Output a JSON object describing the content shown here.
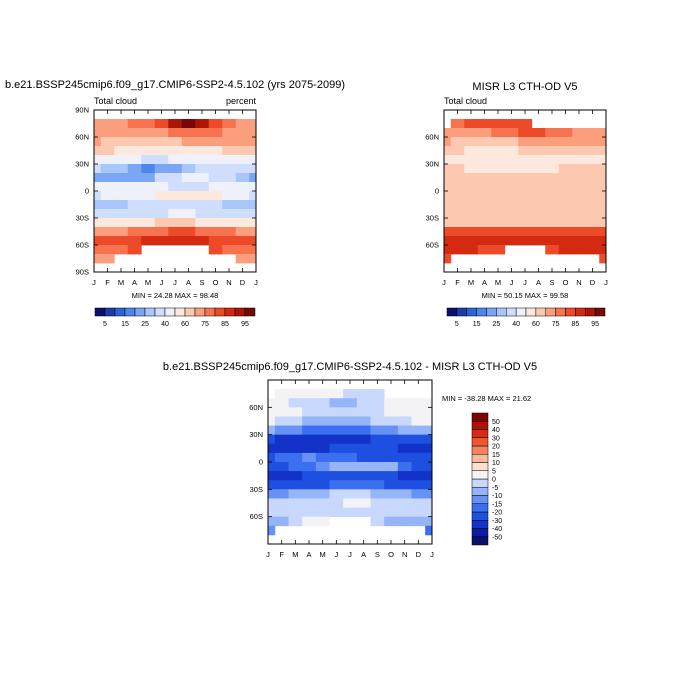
{
  "chart_data": [
    {
      "type": "heatmap",
      "title": "b.e21.BSSP245cmip6.f09_g17.CMIP6-SSP2-4.5.102 (yrs 2075-2099)",
      "left_label": "Total cloud",
      "right_label": "percent",
      "x_ticks": [
        "J",
        "F",
        "M",
        "A",
        "M",
        "J",
        "J",
        "A",
        "S",
        "O",
        "N",
        "D",
        "J"
      ],
      "y_ticks": [
        "90N",
        "60N",
        "30N",
        "0",
        "30S",
        "60S",
        "90S"
      ],
      "ylim": [
        -90,
        90
      ],
      "lat_rows": [
        75,
        65,
        55,
        45,
        35,
        25,
        15,
        5,
        -5,
        -15,
        -25,
        -35,
        -45,
        -55,
        -65,
        -75
      ],
      "values": [
        [
          72,
          72,
          74,
          76,
          78,
          82,
          90,
          96,
          92,
          82,
          76,
          74,
          72
        ],
        [
          72,
          70,
          70,
          70,
          72,
          74,
          76,
          78,
          78,
          76,
          74,
          73,
          72
        ],
        [
          70,
          68,
          66,
          64,
          64,
          66,
          68,
          70,
          70,
          70,
          70,
          70,
          70
        ],
        [
          62,
          60,
          58,
          56,
          54,
          54,
          56,
          58,
          58,
          58,
          60,
          62,
          62
        ],
        [
          48,
          46,
          44,
          40,
          38,
          38,
          40,
          42,
          44,
          46,
          48,
          48,
          48
        ],
        [
          30,
          28,
          26,
          22,
          18,
          20,
          22,
          26,
          30,
          32,
          32,
          30,
          30
        ],
        [
          24,
          22,
          20,
          20,
          22,
          30,
          36,
          40,
          40,
          36,
          30,
          26,
          24
        ],
        [
          42,
          44,
          46,
          48,
          44,
          40,
          38,
          36,
          36,
          40,
          42,
          42,
          42
        ],
        [
          38,
          40,
          42,
          44,
          48,
          52,
          54,
          56,
          56,
          52,
          46,
          40,
          38
        ],
        [
          26,
          26,
          28,
          30,
          32,
          34,
          36,
          38,
          36,
          32,
          28,
          26,
          26
        ],
        [
          30,
          30,
          32,
          34,
          36,
          38,
          40,
          40,
          38,
          36,
          34,
          32,
          30
        ],
        [
          52,
          52,
          54,
          56,
          58,
          60,
          60,
          60,
          58,
          56,
          54,
          52,
          52
        ],
        [
          74,
          74,
          74,
          75,
          76,
          78,
          80,
          80,
          78,
          76,
          75,
          74,
          74
        ],
        [
          84,
          84,
          84,
          84,
          85,
          86,
          86,
          86,
          85,
          84,
          84,
          84,
          84
        ],
        [
          78,
          78,
          78,
          80,
          null,
          null,
          null,
          null,
          null,
          80,
          78,
          78,
          78
        ],
        [
          70,
          72,
          null,
          null,
          null,
          null,
          null,
          null,
          null,
          null,
          null,
          72,
          70
        ]
      ],
      "min_label": "MIN =  24.28 MAX =  98.48",
      "colorbar_labels": [
        "5",
        "15",
        "25",
        "40",
        "60",
        "75",
        "85",
        "95"
      ]
    },
    {
      "type": "heatmap",
      "title": "MISR L3 CTH-OD V5",
      "left_label": "Total cloud",
      "x_ticks": [
        "J",
        "F",
        "M",
        "A",
        "M",
        "J",
        "J",
        "A",
        "S",
        "O",
        "N",
        "D",
        "J"
      ],
      "y_ticks": [
        "60N",
        "30N",
        "0",
        "30S",
        "60S"
      ],
      "ylim": [
        -90,
        90
      ],
      "lat_rows": [
        75,
        65,
        55,
        45,
        35,
        25,
        15,
        5,
        -5,
        -15,
        -25,
        -35,
        -45,
        -55,
        -65,
        -75
      ],
      "values": [
        [
          null,
          78,
          80,
          80,
          80,
          80,
          80,
          null,
          null,
          null,
          null,
          null,
          null
        ],
        [
          72,
          72,
          72,
          74,
          76,
          78,
          80,
          80,
          78,
          76,
          74,
          72,
          72
        ],
        [
          70,
          68,
          66,
          66,
          66,
          68,
          70,
          72,
          72,
          72,
          70,
          70,
          70
        ],
        [
          62,
          60,
          58,
          56,
          56,
          58,
          60,
          62,
          62,
          62,
          62,
          62,
          62
        ],
        [
          56,
          54,
          52,
          50,
          50,
          52,
          54,
          56,
          56,
          56,
          56,
          56,
          56
        ],
        [
          60,
          60,
          58,
          56,
          56,
          56,
          58,
          58,
          58,
          60,
          60,
          60,
          60
        ],
        [
          62,
          62,
          60,
          60,
          60,
          62,
          62,
          62,
          62,
          62,
          62,
          62,
          62
        ],
        [
          66,
          66,
          66,
          64,
          64,
          64,
          64,
          64,
          64,
          66,
          66,
          66,
          66
        ],
        [
          64,
          64,
          64,
          64,
          64,
          64,
          64,
          64,
          64,
          64,
          64,
          64,
          64
        ],
        [
          62,
          62,
          62,
          62,
          62,
          62,
          62,
          62,
          62,
          62,
          62,
          62,
          62
        ],
        [
          60,
          60,
          60,
          60,
          60,
          60,
          60,
          60,
          60,
          60,
          60,
          60,
          60
        ],
        [
          66,
          66,
          66,
          66,
          66,
          66,
          66,
          66,
          66,
          66,
          66,
          66,
          66
        ],
        [
          80,
          80,
          80,
          80,
          80,
          80,
          80,
          80,
          80,
          80,
          80,
          80,
          80
        ],
        [
          88,
          88,
          88,
          88,
          88,
          88,
          88,
          88,
          88,
          88,
          88,
          88,
          88
        ],
        [
          86,
          86,
          86,
          84,
          84,
          null,
          null,
          null,
          84,
          86,
          86,
          86,
          86
        ],
        [
          84,
          null,
          null,
          null,
          null,
          null,
          null,
          null,
          null,
          null,
          null,
          null,
          84
        ]
      ],
      "min_label": "MIN =  50.15 MAX =  99.58",
      "colorbar_labels": [
        "5",
        "15",
        "25",
        "40",
        "60",
        "75",
        "85",
        "95"
      ]
    },
    {
      "type": "heatmap",
      "title": "b.e21.BSSP245cmip6.f09_g17.CMIP6-SSP2-4.5.102 - MISR L3 CTH-OD V5",
      "x_ticks": [
        "J",
        "F",
        "M",
        "A",
        "M",
        "J",
        "J",
        "A",
        "S",
        "O",
        "N",
        "D",
        "J"
      ],
      "y_ticks": [
        "60N",
        "30N",
        "0",
        "30S",
        "60S"
      ],
      "ylim": [
        -90,
        90
      ],
      "lat_rows": [
        75,
        65,
        55,
        45,
        35,
        25,
        15,
        5,
        -5,
        -15,
        -25,
        -35,
        -45,
        -55,
        -65,
        -75
      ],
      "values": [
        [
          null,
          4,
          2,
          2,
          0,
          0,
          -2,
          -4,
          -2,
          null,
          null,
          null,
          null
        ],
        [
          2,
          0,
          -2,
          -4,
          -4,
          -6,
          -6,
          -4,
          -2,
          0,
          2,
          2,
          2
        ],
        [
          2,
          2,
          0,
          -2,
          -4,
          -4,
          -4,
          -2,
          -2,
          0,
          2,
          2,
          2
        ],
        [
          0,
          -2,
          -4,
          -6,
          -8,
          -8,
          -6,
          -6,
          -4,
          -4,
          -2,
          0,
          0
        ],
        [
          -10,
          -12,
          -14,
          -18,
          -20,
          -20,
          -18,
          -16,
          -14,
          -12,
          -10,
          -10,
          -10
        ],
        [
          -30,
          -32,
          -34,
          -34,
          -36,
          -36,
          -34,
          -32,
          -30,
          -28,
          -28,
          -30,
          -30
        ],
        [
          -36,
          -38,
          -38,
          -36,
          -34,
          -30,
          -26,
          -22,
          -22,
          -26,
          -32,
          -36,
          -36
        ],
        [
          -22,
          -20,
          -18,
          -14,
          -16,
          -18,
          -20,
          -22,
          -24,
          -26,
          -22,
          -22,
          -22
        ],
        [
          -24,
          -22,
          -20,
          -18,
          -14,
          -10,
          -8,
          -6,
          -6,
          -10,
          -16,
          -22,
          -24
        ],
        [
          -34,
          -34,
          -32,
          -30,
          -28,
          -26,
          -24,
          -22,
          -24,
          -28,
          -32,
          -34,
          -34
        ],
        [
          -28,
          -28,
          -26,
          -24,
          -22,
          -20,
          -18,
          -18,
          -20,
          -22,
          -24,
          -26,
          -28
        ],
        [
          -12,
          -12,
          -10,
          -8,
          -6,
          -4,
          -4,
          -4,
          -6,
          -8,
          -10,
          -12,
          -12
        ],
        [
          -4,
          -4,
          -4,
          -4,
          -2,
          -2,
          0,
          0,
          -2,
          -4,
          -4,
          -4,
          -4
        ],
        [
          -2,
          -2,
          -2,
          -2,
          -2,
          -2,
          -2,
          -2,
          -2,
          -2,
          -2,
          -2,
          -2
        ],
        [
          -6,
          -6,
          -4,
          0,
          2,
          null,
          null,
          null,
          -2,
          -6,
          -8,
          -10,
          -10
        ],
        [
          -12,
          null,
          null,
          null,
          null,
          null,
          null,
          null,
          null,
          null,
          null,
          null,
          -16
        ]
      ],
      "min_label": "MIN = -38.28 MAX =  21.62",
      "colorbar_labels": [
        "50",
        "40",
        "30",
        "20",
        "15",
        "10",
        "5",
        "0",
        "-5",
        "-10",
        "-15",
        "-20",
        "-30",
        "-40",
        "-50"
      ]
    }
  ],
  "abs_scale": {
    "levels": [
      5,
      10,
      15,
      20,
      25,
      30,
      40,
      50,
      60,
      70,
      75,
      80,
      85,
      90,
      95
    ],
    "colors": [
      "#08106b",
      "#1a3ca8",
      "#2e63d6",
      "#4f86ee",
      "#7aa6f5",
      "#a8c6fa",
      "#cfdefd",
      "#eef1f9",
      "#fde8de",
      "#fcc8b0",
      "#fb9e7e",
      "#f7734f",
      "#ec4a28",
      "#d42a12",
      "#ad1508",
      "#760808"
    ]
  },
  "diff_scale": {
    "levels": [
      -50,
      -40,
      -30,
      -20,
      -15,
      -10,
      -5,
      0,
      5,
      10,
      15,
      20,
      30,
      40,
      50
    ],
    "colors": [
      "#08106b",
      "#0b1ea0",
      "#1232c8",
      "#1d50e0",
      "#3a6ff0",
      "#6691f5",
      "#96b5f8",
      "#c8d8fc",
      "#f3f3f6",
      "#fde0d0",
      "#fbb89a",
      "#f7865f",
      "#ef5530",
      "#d82c12",
      "#b01208",
      "#7a0606"
    ]
  }
}
